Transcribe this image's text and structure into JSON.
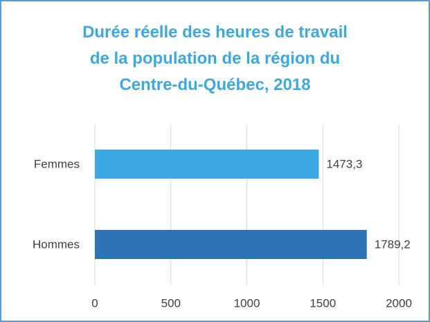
{
  "chart_data": {
    "type": "bar",
    "orientation": "horizontal",
    "title": "Durée réelle des heures de travail\nde la population de la région du\nCentre-du-Québec, 2018",
    "categories": [
      "Femmes",
      "Hommes"
    ],
    "values": [
      1473.3,
      1789.2
    ],
    "value_labels": [
      "1473,3",
      "1789,2"
    ],
    "colors": [
      "#3aa9e1",
      "#2e72b6"
    ],
    "xlim": [
      0,
      2000
    ],
    "xticks": [
      0,
      500,
      1000,
      1500,
      2000
    ],
    "grid": true
  }
}
